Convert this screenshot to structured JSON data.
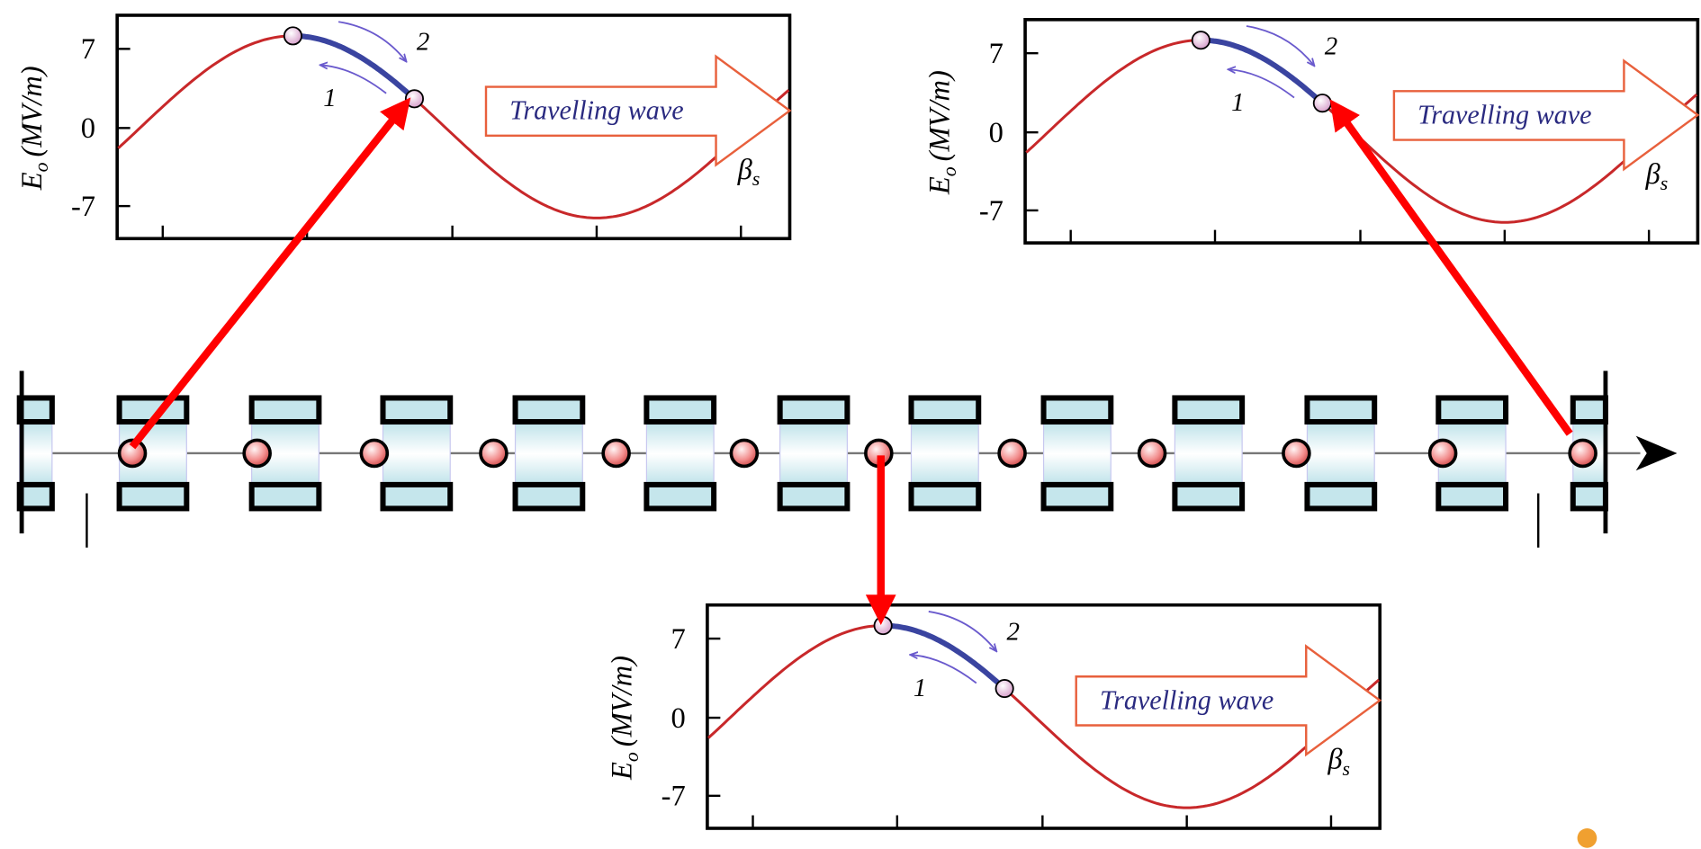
{
  "plots": [
    {
      "yticks": [
        "7",
        "0",
        "-7"
      ],
      "ylabel": {
        "symbol": "E",
        "subscript": "o",
        "unit": "(MV/m)"
      },
      "wave_label": "Travelling wave",
      "beta": {
        "symbol": "β",
        "subscript": "s"
      },
      "direction_labels": [
        "1",
        "2"
      ]
    },
    {
      "yticks": [
        "7",
        "0",
        "-7"
      ],
      "ylabel": {
        "symbol": "E",
        "subscript": "o",
        "unit": "(MV/m)"
      },
      "wave_label": "Travelling wave",
      "beta": {
        "symbol": "β",
        "subscript": "s"
      },
      "direction_labels": [
        "1",
        "2"
      ]
    },
    {
      "yticks": [
        "7",
        "0",
        "-7"
      ],
      "ylabel": {
        "symbol": "E",
        "subscript": "o",
        "unit": "(MV/m)"
      },
      "wave_label": "Travelling wave",
      "beta": {
        "symbol": "β",
        "subscript": "s"
      },
      "direction_labels": [
        "1",
        "2"
      ]
    }
  ]
}
